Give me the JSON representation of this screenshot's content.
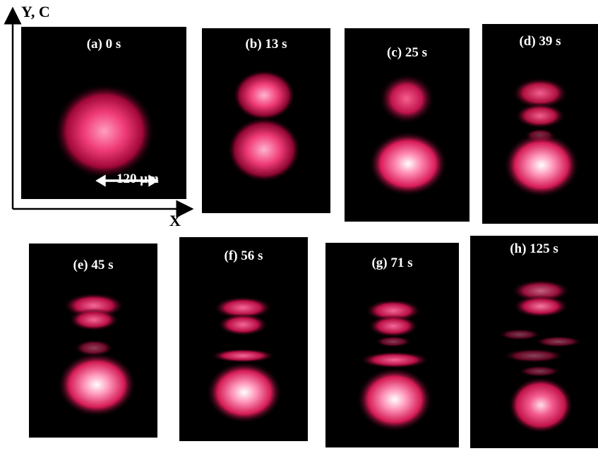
{
  "axes": {
    "y_label": "Y, C",
    "x_label": "X"
  },
  "scale_bar": {
    "text": "120 μm"
  },
  "panels": [
    {
      "label": "(a) 0 s"
    },
    {
      "label": "(b) 13 s"
    },
    {
      "label": "(c) 25 s"
    },
    {
      "label": "(d) 39 s"
    },
    {
      "label": "(e) 45 s"
    },
    {
      "label": "(f) 56 s"
    },
    {
      "label": "(g) 71 s"
    },
    {
      "label": "(h) 125 s"
    }
  ],
  "colors": {
    "background": "#000000",
    "glow_core": "#ffffff",
    "glow_mid": "#ff4f8a",
    "glow_edge": "#c8104a"
  }
}
